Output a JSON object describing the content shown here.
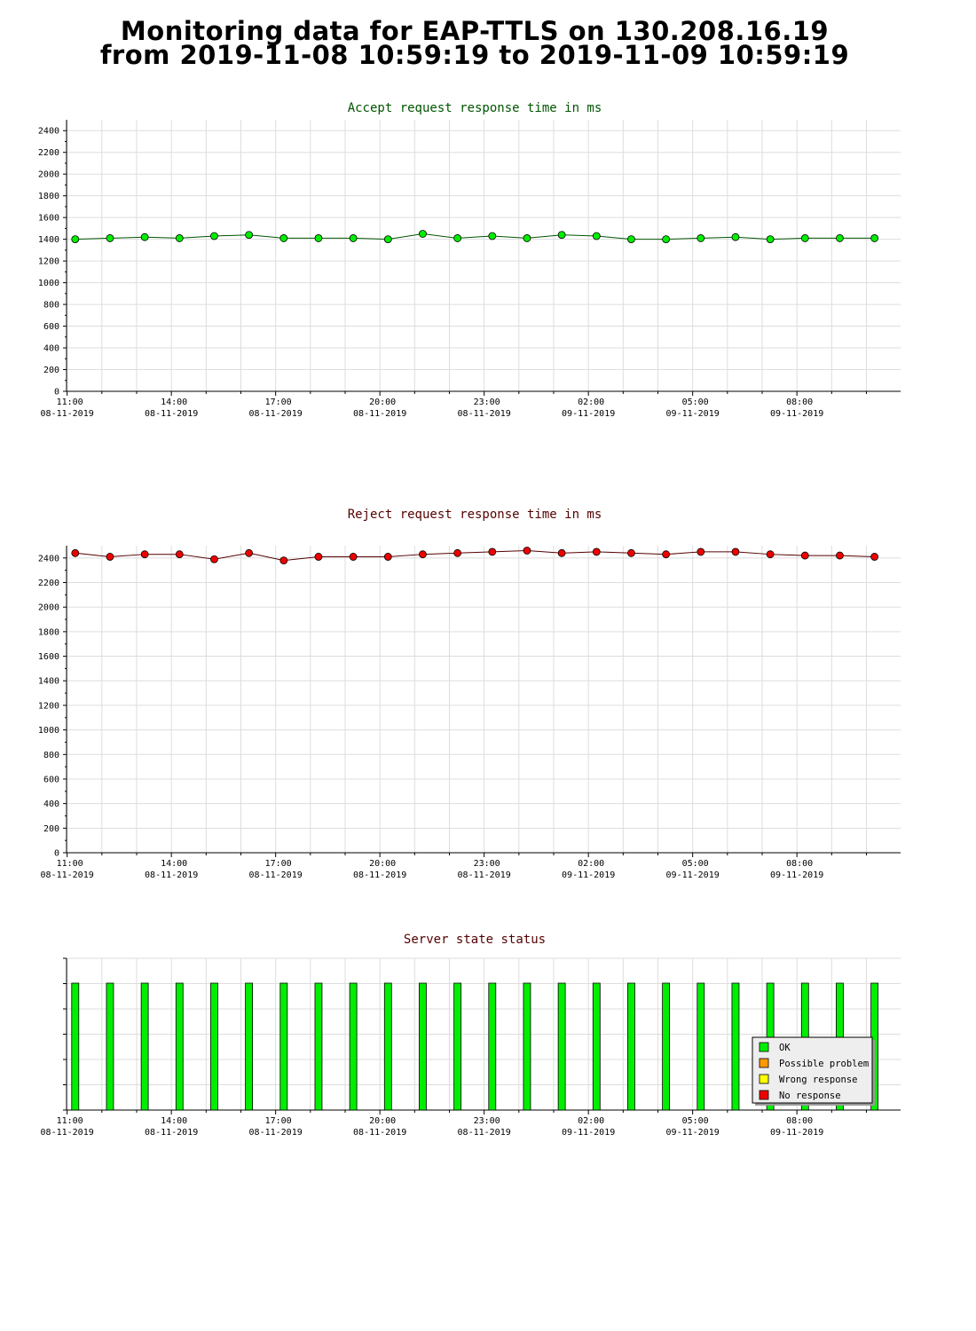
{
  "page": {
    "title_line1": "Monitoring data for EAP-TTLS on 130.208.16.19",
    "title_line2": "from 2019-11-08 10:59:19 to 2019-11-09 10:59:19"
  },
  "chart_data": [
    {
      "id": "accept",
      "type": "line",
      "title": "Accept request response time in ms",
      "title_color": "#005500",
      "marker_color": "#00ee00",
      "line_color": "#005500",
      "grid": true,
      "ylim": [
        0,
        2500
      ],
      "yticks": [
        0,
        200,
        400,
        600,
        800,
        1000,
        1200,
        1400,
        1600,
        1800,
        2000,
        2200,
        2400
      ],
      "x_range": [
        "2019-11-08 10:59",
        "2019-11-09 10:59"
      ],
      "xticks": [
        {
          "time": "11:00",
          "date": "08-11-2019"
        },
        {
          "time": "14:00",
          "date": "08-11-2019"
        },
        {
          "time": "17:00",
          "date": "08-11-2019"
        },
        {
          "time": "20:00",
          "date": "08-11-2019"
        },
        {
          "time": "23:00",
          "date": "08-11-2019"
        },
        {
          "time": "02:00",
          "date": "09-11-2019"
        },
        {
          "time": "05:00",
          "date": "09-11-2019"
        },
        {
          "time": "08:00",
          "date": "09-11-2019"
        }
      ],
      "series": [
        {
          "x": [
            "2019-11-08 11:14",
            "2019-11-08 12:14",
            "2019-11-08 13:14",
            "2019-11-08 14:14",
            "2019-11-08 15:14",
            "2019-11-08 16:14",
            "2019-11-08 17:14",
            "2019-11-08 18:14",
            "2019-11-08 19:14",
            "2019-11-08 20:14",
            "2019-11-08 21:14",
            "2019-11-08 22:14",
            "2019-11-08 23:14",
            "2019-11-09 00:14",
            "2019-11-09 01:14",
            "2019-11-09 02:14",
            "2019-11-09 03:14",
            "2019-11-09 04:14",
            "2019-11-09 05:14",
            "2019-11-09 06:14",
            "2019-11-09 07:14",
            "2019-11-09 08:14",
            "2019-11-09 09:14",
            "2019-11-09 10:14"
          ],
          "y": [
            1400,
            1410,
            1420,
            1410,
            1430,
            1440,
            1410,
            1410,
            1410,
            1400,
            1450,
            1410,
            1430,
            1410,
            1440,
            1430,
            1400,
            1400,
            1410,
            1420,
            1400,
            1410,
            1410,
            1410
          ]
        }
      ]
    },
    {
      "id": "reject",
      "type": "line",
      "title": "Reject request response time in ms",
      "title_color": "#550000",
      "marker_color": "#ee0000",
      "line_color": "#550000",
      "grid": true,
      "ylim": [
        0,
        2500
      ],
      "yticks": [
        0,
        200,
        400,
        600,
        800,
        1000,
        1200,
        1400,
        1600,
        1800,
        2000,
        2200,
        2400
      ],
      "x_range": [
        "2019-11-08 10:59",
        "2019-11-09 10:59"
      ],
      "xticks": [
        {
          "time": "11:00",
          "date": "08-11-2019"
        },
        {
          "time": "14:00",
          "date": "08-11-2019"
        },
        {
          "time": "17:00",
          "date": "08-11-2019"
        },
        {
          "time": "20:00",
          "date": "08-11-2019"
        },
        {
          "time": "23:00",
          "date": "08-11-2019"
        },
        {
          "time": "02:00",
          "date": "09-11-2019"
        },
        {
          "time": "05:00",
          "date": "09-11-2019"
        },
        {
          "time": "08:00",
          "date": "09-11-2019"
        }
      ],
      "series": [
        {
          "x": [
            "2019-11-08 11:14",
            "2019-11-08 12:14",
            "2019-11-08 13:14",
            "2019-11-08 14:14",
            "2019-11-08 15:14",
            "2019-11-08 16:14",
            "2019-11-08 17:14",
            "2019-11-08 18:14",
            "2019-11-08 19:14",
            "2019-11-08 20:14",
            "2019-11-08 21:14",
            "2019-11-08 22:14",
            "2019-11-08 23:14",
            "2019-11-09 00:14",
            "2019-11-09 01:14",
            "2019-11-09 02:14",
            "2019-11-09 03:14",
            "2019-11-09 04:14",
            "2019-11-09 05:14",
            "2019-11-09 06:14",
            "2019-11-09 07:14",
            "2019-11-09 08:14",
            "2019-11-09 09:14",
            "2019-11-09 10:14"
          ],
          "y": [
            2440,
            2410,
            2430,
            2430,
            2390,
            2440,
            2380,
            2410,
            2410,
            2410,
            2430,
            2440,
            2450,
            2460,
            2440,
            2450,
            2440,
            2430,
            2450,
            2450,
            2430,
            2420,
            2420,
            2410
          ]
        }
      ]
    },
    {
      "id": "status",
      "type": "bar",
      "title": "Server state status",
      "title_color": "#550000",
      "grid": true,
      "x_range": [
        "2019-11-08 10:59",
        "2019-11-09 10:59"
      ],
      "xticks": [
        {
          "time": "11:00",
          "date": "08-11-2019"
        },
        {
          "time": "14:00",
          "date": "08-11-2019"
        },
        {
          "time": "17:00",
          "date": "08-11-2019"
        },
        {
          "time": "20:00",
          "date": "08-11-2019"
        },
        {
          "time": "23:00",
          "date": "08-11-2019"
        },
        {
          "time": "02:00",
          "date": "09-11-2019"
        },
        {
          "time": "05:00",
          "date": "09-11-2019"
        },
        {
          "time": "08:00",
          "date": "09-11-2019"
        }
      ],
      "x": [
        "2019-11-08 11:14",
        "2019-11-08 12:14",
        "2019-11-08 13:14",
        "2019-11-08 14:14",
        "2019-11-08 15:14",
        "2019-11-08 16:14",
        "2019-11-08 17:14",
        "2019-11-08 18:14",
        "2019-11-08 19:14",
        "2019-11-08 20:14",
        "2019-11-08 21:14",
        "2019-11-08 22:14",
        "2019-11-08 23:14",
        "2019-11-09 00:14",
        "2019-11-09 01:14",
        "2019-11-09 02:14",
        "2019-11-09 03:14",
        "2019-11-09 04:14",
        "2019-11-09 05:14",
        "2019-11-09 06:14",
        "2019-11-09 07:14",
        "2019-11-09 08:14",
        "2019-11-09 09:14",
        "2019-11-09 10:14"
      ],
      "states": [
        "OK",
        "OK",
        "OK",
        "OK",
        "OK",
        "OK",
        "OK",
        "OK",
        "OK",
        "OK",
        "OK",
        "OK",
        "OK",
        "OK",
        "OK",
        "OK",
        "OK",
        "OK",
        "OK",
        "OK",
        "OK",
        "OK",
        "OK",
        "OK"
      ],
      "legend_position": "bottom-right",
      "legend": [
        {
          "label": "OK",
          "color": "#00ee00"
        },
        {
          "label": "Possible problem",
          "color": "#ff9900"
        },
        {
          "label": "Wrong response",
          "color": "#ffff00"
        },
        {
          "label": "No response",
          "color": "#ee0000"
        }
      ]
    }
  ]
}
